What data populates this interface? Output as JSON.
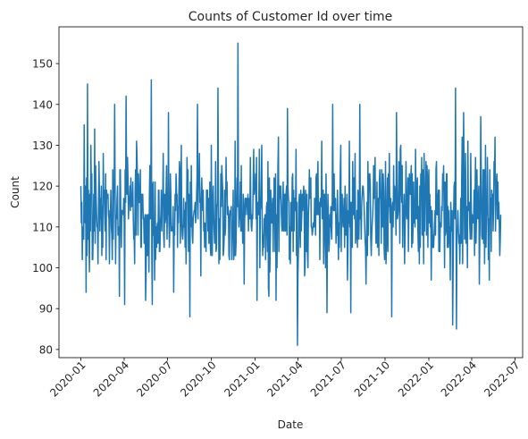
{
  "chart_data": {
    "type": "line",
    "title": "Counts of Customer Id over time",
    "xlabel": "Date",
    "ylabel": "Count",
    "x_start": "2020-01-01",
    "x_end": "2022-06-01",
    "xlim": [
      "2019-11-16",
      "2022-07-17"
    ],
    "ylim": [
      78,
      159
    ],
    "yticks": [
      80,
      90,
      100,
      110,
      120,
      130,
      140,
      150
    ],
    "xticks": [
      "2020-01",
      "2020-04",
      "2020-07",
      "2020-10",
      "2021-01",
      "2021-04",
      "2021-07",
      "2021-10",
      "2022-01",
      "2022-04",
      "2022-07"
    ],
    "grid": false,
    "series": [
      {
        "color": "#1f77b4",
        "peaks": [
          {
            "date": "2020-01-04",
            "value": 102
          },
          {
            "date": "2020-01-08",
            "value": 135
          },
          {
            "date": "2020-01-12",
            "value": 94
          },
          {
            "date": "2020-01-15",
            "value": 145
          },
          {
            "date": "2020-01-22",
            "value": 130
          },
          {
            "date": "2020-02-08",
            "value": 126
          },
          {
            "date": "2020-03-12",
            "value": 140
          },
          {
            "date": "2020-03-22",
            "value": 93
          },
          {
            "date": "2020-04-02",
            "value": 91
          },
          {
            "date": "2020-04-05",
            "value": 142
          },
          {
            "date": "2020-05-28",
            "value": 146
          },
          {
            "date": "2020-05-30",
            "value": 91
          },
          {
            "date": "2020-07-03",
            "value": 138
          },
          {
            "date": "2020-08-17",
            "value": 88
          },
          {
            "date": "2020-09-02",
            "value": 140
          },
          {
            "date": "2020-10-15",
            "value": 144
          },
          {
            "date": "2020-11-26",
            "value": 155
          },
          {
            "date": "2021-01-05",
            "value": 92
          },
          {
            "date": "2021-03-10",
            "value": 139
          },
          {
            "date": "2021-03-31",
            "value": 81
          },
          {
            "date": "2021-06-01",
            "value": 89
          },
          {
            "date": "2021-06-13",
            "value": 140
          },
          {
            "date": "2021-07-21",
            "value": 89
          },
          {
            "date": "2021-08-09",
            "value": 140
          },
          {
            "date": "2021-10-15",
            "value": 88
          },
          {
            "date": "2021-10-25",
            "value": 138
          },
          {
            "date": "2022-02-20",
            "value": 86
          },
          {
            "date": "2022-02-26",
            "value": 144
          },
          {
            "date": "2022-02-28",
            "value": 85
          },
          {
            "date": "2022-03-15",
            "value": 138
          },
          {
            "date": "2022-04-20",
            "value": 137
          },
          {
            "date": "2022-05-08",
            "value": 97
          },
          {
            "date": "2022-05-20",
            "value": 132
          }
        ],
        "mean": 113.5,
        "spread": 7.5
      }
    ]
  }
}
